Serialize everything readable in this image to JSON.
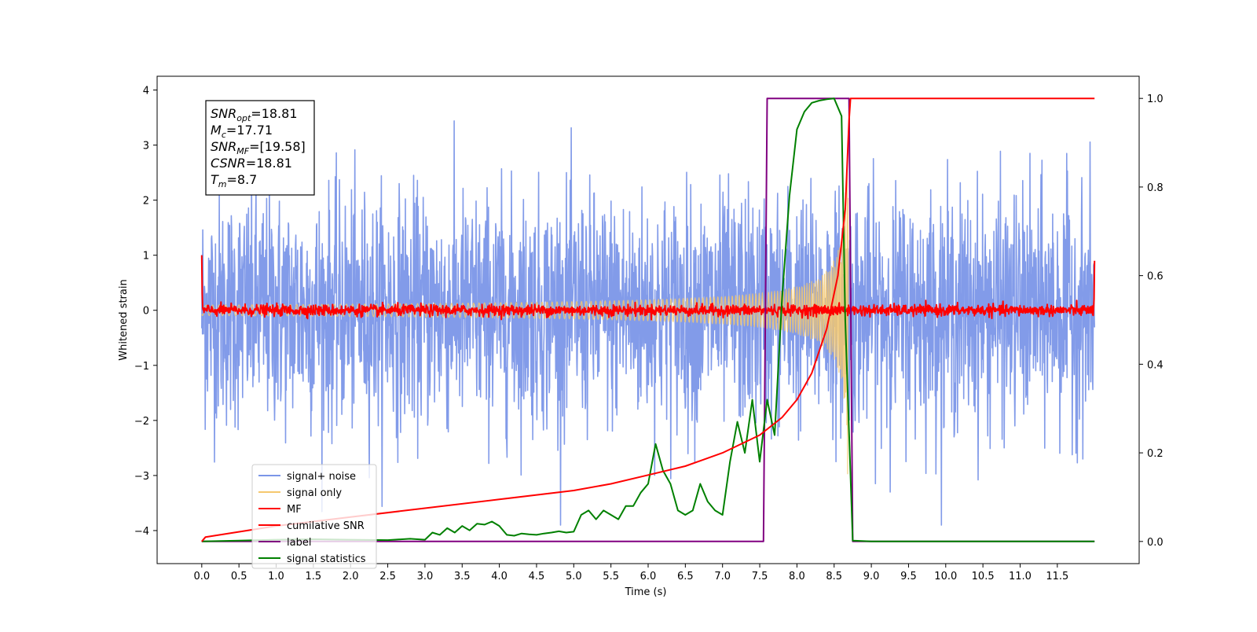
{
  "chart_data": {
    "type": "line",
    "title": "",
    "xlabel": "Time (s)",
    "ylabel": "Whitened strain",
    "xlim": [
      -0.6,
      12.6
    ],
    "xticks": [
      "0.0",
      "0.5",
      "1.0",
      "1.5",
      "2.0",
      "2.5",
      "3.0",
      "3.5",
      "4.0",
      "4.5",
      "5.0",
      "5.5",
      "6.0",
      "6.5",
      "7.0",
      "7.5",
      "8.0",
      "8.5",
      "9.0",
      "9.5",
      "10.0",
      "10.5",
      "11.0",
      "11.5"
    ],
    "ylim_left": [
      -4.6,
      4.25
    ],
    "yticks_left": [
      "4",
      "3",
      "2",
      "1",
      "0",
      "−1",
      "−2",
      "−3",
      "−4"
    ],
    "ylim_right": [
      -0.05,
      1.05
    ],
    "yticks_right": [
      "1.0",
      "0.8",
      "0.6",
      "0.4",
      "0.2",
      "0.0"
    ],
    "grid": false,
    "legend_position": "lower-left",
    "annotation": {
      "lines": [
        {
          "sym": "SNR",
          "sub": "opt",
          "value": "=18.81"
        },
        {
          "sym": "M",
          "sub": "c",
          "value": "=17.71"
        },
        {
          "sym": "SNR",
          "sub": "MF",
          "value": "=[19.58]"
        },
        {
          "sym": "CSNR",
          "sub": "",
          "value": "=18.81"
        },
        {
          "sym": "T",
          "sub": "m",
          "value": "=8.7"
        }
      ]
    },
    "series": [
      {
        "name": "signal+ noise",
        "color": "#7b96e8",
        "axis": "left",
        "kind": "noise",
        "t_start": 0.0,
        "t_end": 12.0,
        "std": 1.0
      },
      {
        "name": "signal only",
        "color": "#f5c86e",
        "axis": "left",
        "kind": "chirp",
        "t_start": 0.0,
        "t_end": 8.7,
        "amplitude_max": 3.9
      },
      {
        "name": "MF",
        "color": "#ff0000",
        "axis": "left",
        "kind": "noise",
        "t_start": 0.0,
        "t_end": 12.0,
        "std": 0.05
      },
      {
        "name": "cumilative SNR",
        "color": "#ff0000",
        "axis": "right",
        "x": [
          0.0,
          0.05,
          1.0,
          2.0,
          3.0,
          4.0,
          5.0,
          5.5,
          6.0,
          6.5,
          7.0,
          7.5,
          7.8,
          8.0,
          8.2,
          8.4,
          8.55,
          8.65,
          8.7,
          8.72,
          12.0
        ],
        "y": [
          0.0,
          0.01,
          0.035,
          0.055,
          0.075,
          0.095,
          0.115,
          0.13,
          0.15,
          0.17,
          0.2,
          0.24,
          0.28,
          0.32,
          0.38,
          0.48,
          0.6,
          0.75,
          0.95,
          1.0,
          1.0
        ]
      },
      {
        "name": "label",
        "color": "#800080",
        "axis": "right",
        "x": [
          0.0,
          7.55,
          7.6,
          8.7,
          8.75,
          12.0
        ],
        "y": [
          0.0,
          0.0,
          1.0,
          1.0,
          0.0,
          0.0
        ]
      },
      {
        "name": "signal statistics",
        "color": "#008000",
        "axis": "right",
        "x": [
          0.0,
          0.5,
          1.0,
          1.5,
          2.0,
          2.5,
          2.8,
          3.0,
          3.1,
          3.2,
          3.3,
          3.4,
          3.5,
          3.6,
          3.7,
          3.8,
          3.9,
          4.0,
          4.1,
          4.2,
          4.3,
          4.4,
          4.5,
          4.6,
          4.7,
          4.8,
          4.9,
          5.0,
          5.1,
          5.2,
          5.3,
          5.4,
          5.5,
          5.6,
          5.7,
          5.8,
          5.9,
          6.0,
          6.1,
          6.2,
          6.3,
          6.4,
          6.5,
          6.6,
          6.7,
          6.8,
          6.9,
          7.0,
          7.1,
          7.2,
          7.3,
          7.4,
          7.5,
          7.6,
          7.7,
          7.8,
          7.9,
          8.0,
          8.1,
          8.2,
          8.3,
          8.4,
          8.5,
          8.6,
          8.65,
          8.75,
          9.0,
          10.0,
          11.0,
          12.0
        ],
        "y": [
          0.0,
          0.002,
          0.004,
          0.005,
          0.004,
          0.003,
          0.006,
          0.004,
          0.02,
          0.015,
          0.03,
          0.02,
          0.035,
          0.025,
          0.04,
          0.038,
          0.045,
          0.035,
          0.015,
          0.013,
          0.018,
          0.016,
          0.015,
          0.018,
          0.02,
          0.023,
          0.02,
          0.022,
          0.06,
          0.07,
          0.05,
          0.07,
          0.06,
          0.05,
          0.08,
          0.08,
          0.11,
          0.13,
          0.22,
          0.16,
          0.13,
          0.07,
          0.06,
          0.07,
          0.13,
          0.09,
          0.07,
          0.06,
          0.18,
          0.27,
          0.2,
          0.32,
          0.18,
          0.32,
          0.24,
          0.55,
          0.78,
          0.93,
          0.97,
          0.99,
          0.995,
          0.998,
          1.0,
          0.96,
          0.5,
          0.002,
          0.0,
          0.0,
          0.0,
          0.0
        ]
      }
    ]
  }
}
